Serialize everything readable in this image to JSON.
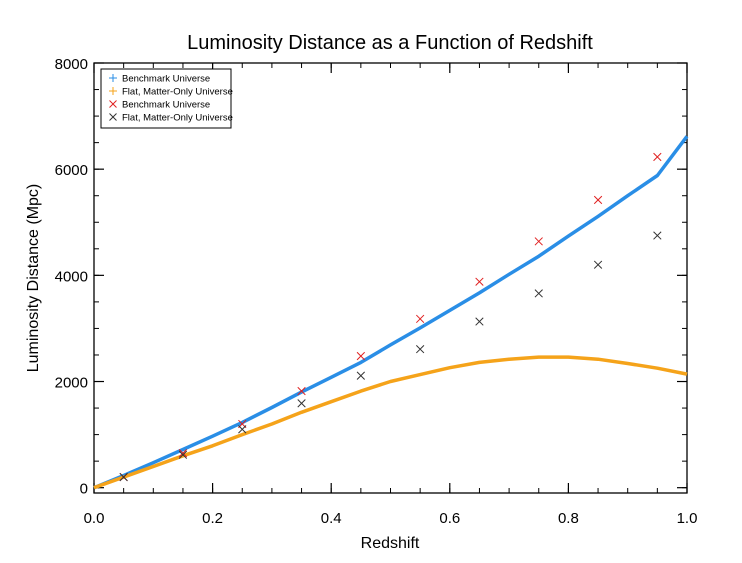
{
  "chart_data": {
    "type": "line",
    "title": "Luminosity Distance as a Function of Redshift",
    "xlabel": "Redshift",
    "ylabel": "Luminosity Distance (Mpc)",
    "xlim": [
      0.0,
      1.0
    ],
    "ylim": [
      -100,
      8000
    ],
    "x_ticks": [
      0.0,
      0.2,
      0.4,
      0.6,
      0.8,
      1.0
    ],
    "x_tick_labels": [
      "0.0",
      "0.2",
      "0.4",
      "0.6",
      "0.8",
      "1.0"
    ],
    "y_ticks": [
      0,
      2000,
      4000,
      6000,
      8000
    ],
    "y_tick_labels": [
      "0",
      "2000",
      "4000",
      "6000",
      "8000"
    ],
    "grid": false,
    "legend_position": "top-left",
    "series": [
      {
        "name": "Benchmark Universe",
        "kind": "line",
        "marker": "+",
        "color": "#2a8ee6",
        "x": [
          0.0,
          0.05,
          0.1,
          0.15,
          0.2,
          0.25,
          0.3,
          0.35,
          0.4,
          0.45,
          0.5,
          0.55,
          0.6,
          0.65,
          0.7,
          0.75,
          0.8,
          0.85,
          0.9,
          0.95,
          1.0
        ],
        "y": [
          0,
          230,
          470,
          720,
          970,
          1230,
          1510,
          1800,
          2080,
          2360,
          2690,
          3010,
          3340,
          3670,
          4020,
          4360,
          4740,
          5110,
          5500,
          5880,
          6620
        ]
      },
      {
        "name": "Flat, Matter-Only Universe",
        "kind": "line",
        "marker": "+",
        "color": "#f5a31a",
        "x": [
          0.0,
          0.05,
          0.1,
          0.15,
          0.2,
          0.25,
          0.3,
          0.35,
          0.4,
          0.45,
          0.5,
          0.55,
          0.6,
          0.65,
          0.7,
          0.75,
          0.8,
          0.85,
          0.9,
          0.95,
          1.0
        ],
        "y": [
          0,
          200,
          400,
          600,
          790,
          1000,
          1200,
          1420,
          1620,
          1820,
          2000,
          2130,
          2260,
          2360,
          2420,
          2460,
          2460,
          2420,
          2340,
          2250,
          2140
        ]
      },
      {
        "name": "Benchmark Universe",
        "kind": "scatter",
        "marker": "x",
        "color": "#e02020",
        "x": [
          0.05,
          0.15,
          0.25,
          0.35,
          0.45,
          0.55,
          0.65,
          0.75,
          0.85,
          0.95
        ],
        "y": [
          200,
          650,
          1200,
          1820,
          2480,
          3180,
          3880,
          4640,
          5420,
          6230
        ]
      },
      {
        "name": "Flat, Matter-Only Universe",
        "kind": "scatter",
        "marker": "x",
        "color": "#333333",
        "x": [
          0.05,
          0.15,
          0.25,
          0.35,
          0.45,
          0.55,
          0.65,
          0.75,
          0.85,
          0.95
        ],
        "y": [
          200,
          620,
          1100,
          1590,
          2110,
          2610,
          3130,
          3660,
          4200,
          4750
        ]
      }
    ]
  }
}
